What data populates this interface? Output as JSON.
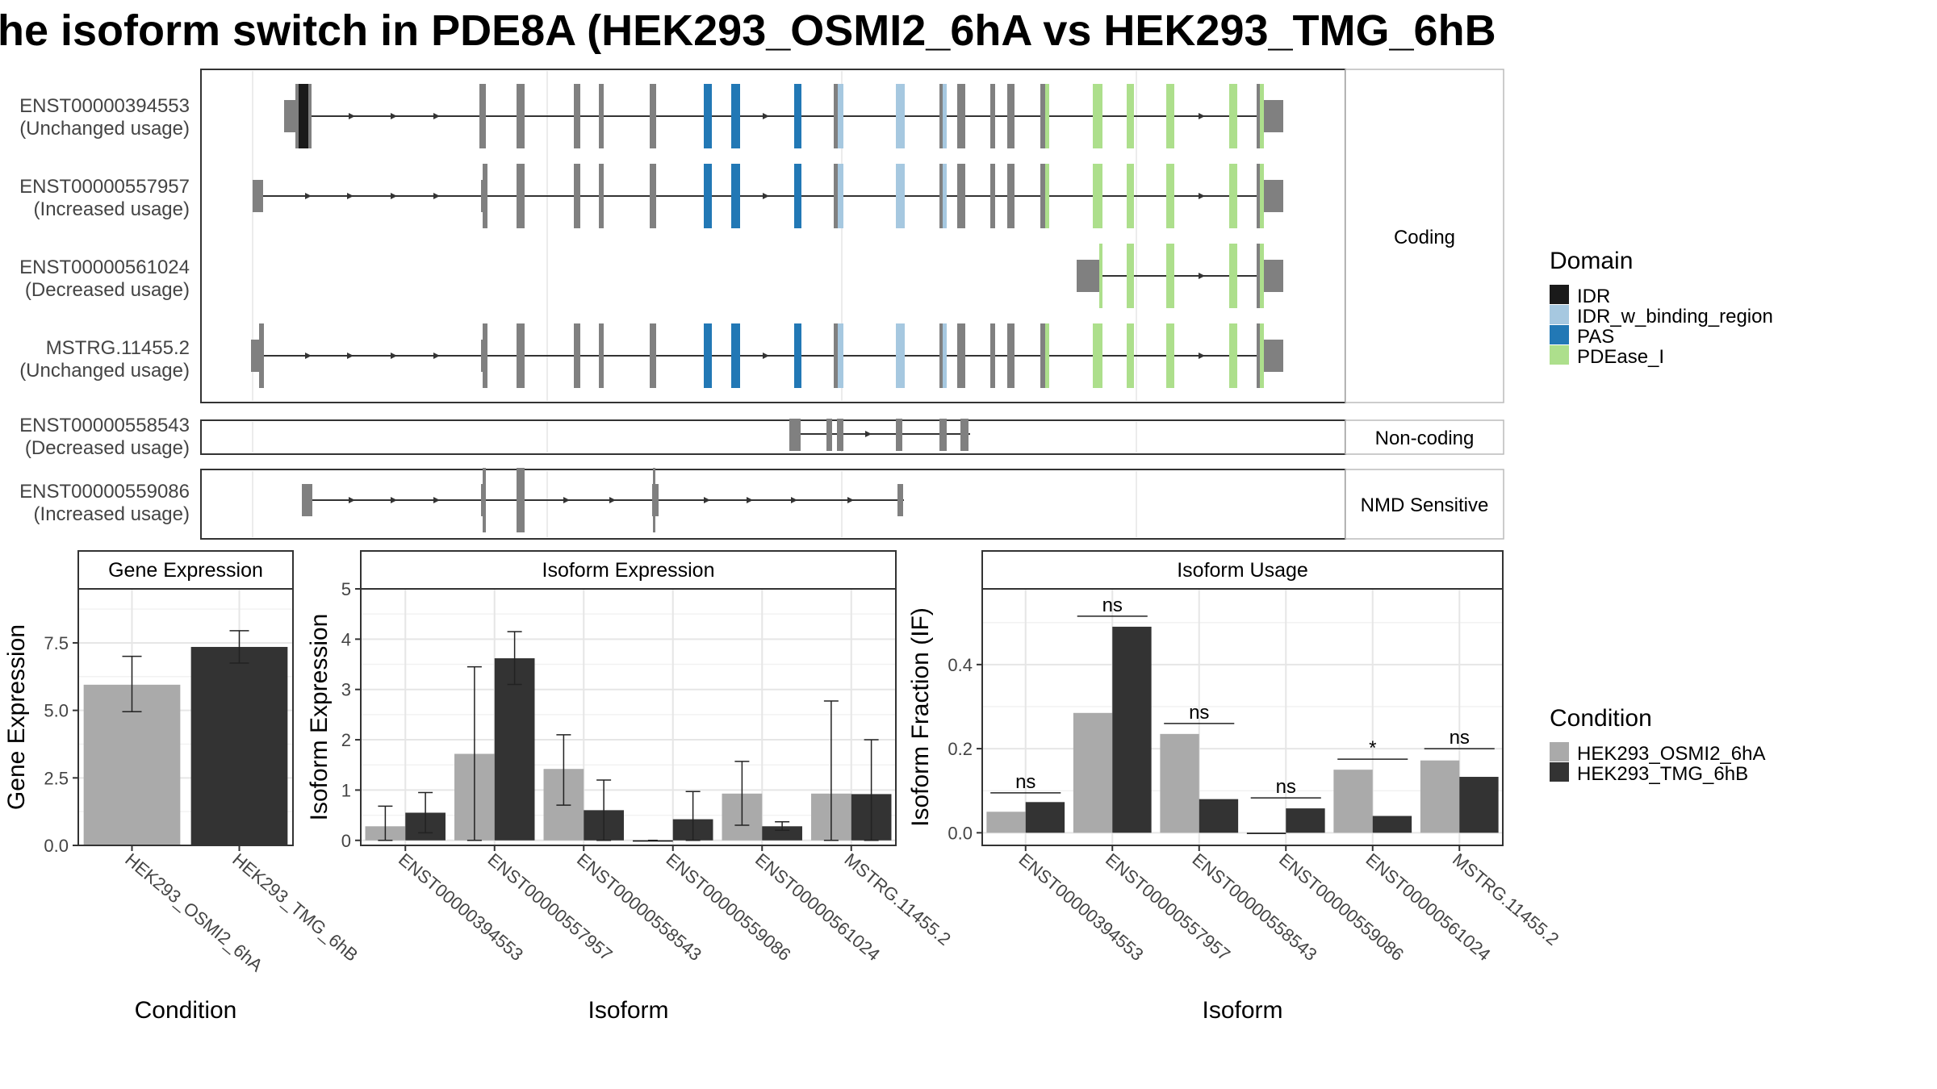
{
  "title": "he isoform switch in PDE8A (HEK293_OSMI2_6hA vs HEK293_TMG_6hB",
  "colors": {
    "cond1": "#aaaaaa",
    "cond2": "#333333",
    "exon": "#808080",
    "IDR": "#1a1a1a",
    "IDR_w_binding_region": "#a6c8e0",
    "PAS": "#2278b5",
    "PDEase_I": "#addf8c"
  },
  "structure": {
    "facets": [
      {
        "label": "Coding",
        "rows": [
          {
            "id": "ENST00000394553",
            "usage": "(Unchanged usage)"
          },
          {
            "id": "ENST00000557957",
            "usage": "(Increased usage)"
          },
          {
            "id": "ENST00000561024",
            "usage": "(Decreased usage)"
          },
          {
            "id": "MSTRG.11455.2",
            "usage": "(Unchanged usage)"
          }
        ]
      },
      {
        "label": "Non-coding",
        "rows": [
          {
            "id": "ENST00000558543",
            "usage": "(Decreased usage)"
          }
        ]
      },
      {
        "label": "NMD Sensitive",
        "rows": [
          {
            "id": "ENST00000559086",
            "usage": "(Increased usage)"
          }
        ]
      }
    ]
  },
  "legends": {
    "domain": {
      "title": "Domain",
      "items": [
        {
          "label": "IDR",
          "color": "#1a1a1a"
        },
        {
          "label": "IDR_w_binding_region",
          "color": "#a6c8e0"
        },
        {
          "label": "PAS",
          "color": "#2278b5"
        },
        {
          "label": "PDEase_I",
          "color": "#addf8c"
        }
      ]
    },
    "condition": {
      "title": "Condition",
      "items": [
        {
          "label": "HEK293_OSMI2_6hA",
          "color": "#aaaaaa"
        },
        {
          "label": "HEK293_TMG_6hB",
          "color": "#333333"
        }
      ]
    }
  },
  "chart_data": [
    {
      "type": "bar",
      "panel": "Gene Expression",
      "xlabel": "Condition",
      "ylabel": "Gene Expression",
      "ylim": [
        0,
        9.5
      ],
      "yticks": [
        0.0,
        2.5,
        5.0,
        7.5
      ],
      "ytick_labels": [
        "0.0",
        "2.5",
        "5.0",
        "7.5"
      ],
      "categories": [
        "HEK293_OSMI2_6hA",
        "HEK293_TMG_6hB"
      ],
      "values": [
        5.95,
        7.35
      ],
      "errors": [
        [
          4.95,
          7.0
        ],
        [
          6.75,
          7.95
        ]
      ],
      "colors": [
        "#aaaaaa",
        "#333333"
      ]
    },
    {
      "type": "bar",
      "panel": "Isoform Expression",
      "xlabel": "Isoform",
      "ylabel": "Isoform Expression",
      "ylim": [
        -0.1,
        5.0
      ],
      "yticks": [
        0,
        1,
        2,
        3,
        4,
        5
      ],
      "ytick_labels": [
        "0",
        "1",
        "2",
        "3",
        "4",
        "5"
      ],
      "categories": [
        "ENST00000394553",
        "ENST00000557957",
        "ENST00000558543",
        "ENST00000559086",
        "ENST00000561024",
        "MSTRG.11455.2"
      ],
      "series": [
        {
          "name": "HEK293_OSMI2_6hA",
          "values": [
            0.28,
            1.72,
            1.42,
            0.0,
            0.93,
            0.93
          ],
          "errors": [
            [
              0.0,
              0.68
            ],
            [
              0.0,
              3.45
            ],
            [
              0.7,
              2.1
            ],
            [
              0.0,
              0.0
            ],
            [
              0.3,
              1.57
            ],
            [
              0.0,
              2.77
            ]
          ]
        },
        {
          "name": "HEK293_TMG_6hB",
          "values": [
            0.55,
            3.62,
            0.6,
            0.42,
            0.28,
            0.92
          ],
          "errors": [
            [
              0.15,
              0.95
            ],
            [
              3.1,
              4.15
            ],
            [
              0.0,
              1.2
            ],
            [
              0.0,
              0.97
            ],
            [
              0.2,
              0.37
            ],
            [
              0.0,
              2.0
            ]
          ]
        }
      ]
    },
    {
      "type": "bar",
      "panel": "Isoform Usage",
      "xlabel": "Isoform",
      "ylabel": "Isoform Fraction (IF)",
      "ylim": [
        -0.03,
        0.58
      ],
      "yticks": [
        0.0,
        0.2,
        0.4
      ],
      "ytick_labels": [
        "0.0",
        "0.2",
        "0.4"
      ],
      "categories": [
        "ENST00000394553",
        "ENST00000557957",
        "ENST00000558543",
        "ENST00000559086",
        "ENST00000561024",
        "MSTRG.11455.2"
      ],
      "series": [
        {
          "name": "HEK293_OSMI2_6hA",
          "values": [
            0.05,
            0.285,
            0.235,
            0.0,
            0.15,
            0.172
          ]
        },
        {
          "name": "HEK293_TMG_6hB",
          "values": [
            0.073,
            0.49,
            0.08,
            0.058,
            0.04,
            0.133
          ]
        }
      ],
      "significance": [
        "ns",
        "ns",
        "ns",
        "ns",
        "*",
        "ns"
      ],
      "significance_y": [
        0.095,
        0.515,
        0.26,
        0.083,
        0.175,
        0.2
      ]
    }
  ]
}
